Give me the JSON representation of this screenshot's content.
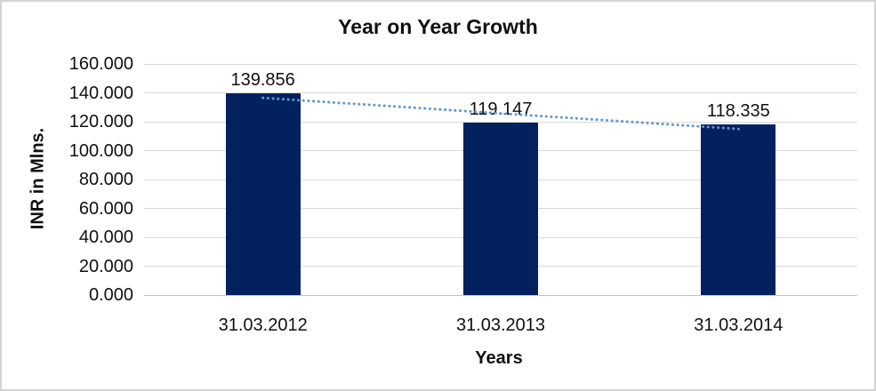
{
  "chart_data": {
    "type": "bar",
    "title": "Year on Year Growth",
    "xlabel": "Years",
    "ylabel": "INR in Mlns.",
    "categories": [
      "31.03.2012",
      "31.03.2013",
      "31.03.2014"
    ],
    "values": [
      139.856,
      119.147,
      118.335
    ],
    "value_labels": [
      "139.856",
      "119.147",
      "118.335"
    ],
    "ylim": [
      0,
      160
    ],
    "ytick_step": 20,
    "ytick_labels": [
      "160.000",
      "140.000",
      "120.000",
      "100.000",
      "80.000",
      "60.000",
      "40.000",
      "20.000",
      "0.000"
    ],
    "grid": true,
    "legend": false,
    "trendline": {
      "type": "linear",
      "style": "dotted"
    },
    "colors": {
      "bar": "#02215E",
      "gridline": "#D9D9D9",
      "axis_line": "#C2C2C2",
      "trendline": "#6297D1",
      "text": "#111111",
      "border": "#D4D4D4",
      "background": "#FFFFFF"
    }
  }
}
